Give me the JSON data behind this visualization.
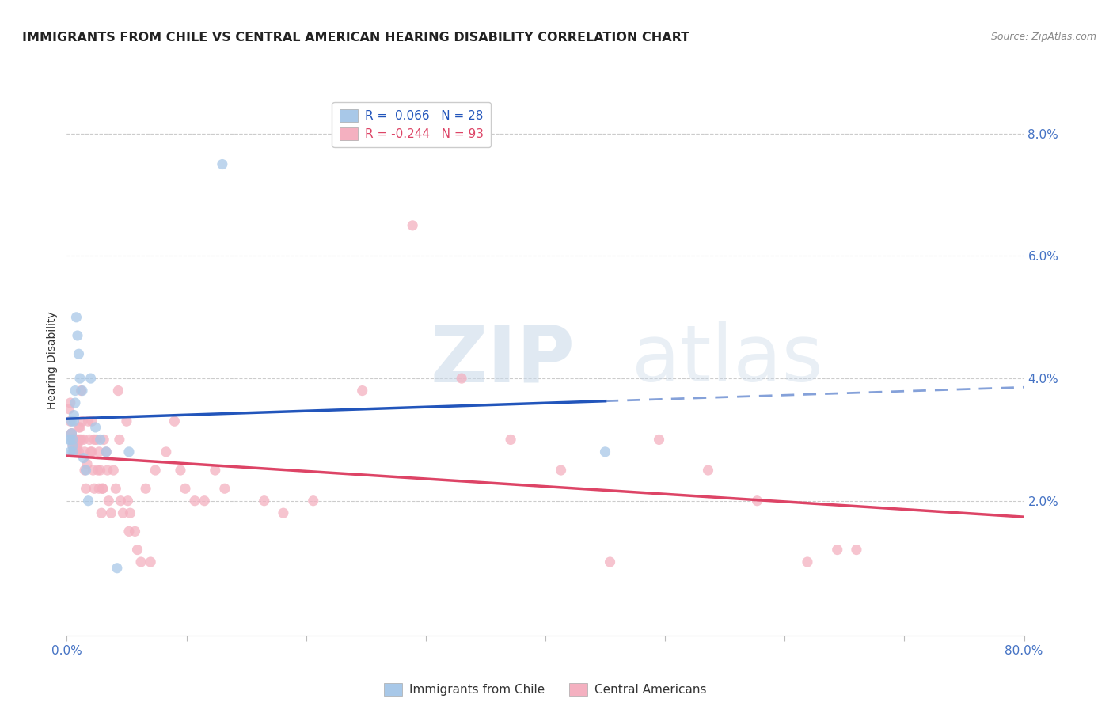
{
  "title": "IMMIGRANTS FROM CHILE VS CENTRAL AMERICAN HEARING DISABILITY CORRELATION CHART",
  "source": "Source: ZipAtlas.com",
  "ylabel": "Hearing Disability",
  "watermark_zip": "ZIP",
  "watermark_atlas": "atlas",
  "xlim": [
    0.0,
    0.8
  ],
  "ylim": [
    -0.002,
    0.088
  ],
  "xticks": [
    0.0,
    0.1,
    0.2,
    0.3,
    0.4,
    0.5,
    0.6,
    0.7,
    0.8
  ],
  "xtick_labels": [
    "0.0%",
    "",
    "",
    "",
    "",
    "",
    "",
    "",
    "80.0%"
  ],
  "ytick_pos": [
    0.0,
    0.02,
    0.04,
    0.06,
    0.08
  ],
  "ytick_labels": [
    "",
    "2.0%",
    "4.0%",
    "6.0%",
    "8.0%"
  ],
  "blue_color": "#a8c8e8",
  "pink_color": "#f4b0c0",
  "trend_blue_color": "#2255bb",
  "trend_pink_color": "#dd4466",
  "axis_color": "#4472c4",
  "grid_color": "#cccccc",
  "bg_color": "#ffffff",
  "legend_R_blue": "R =  0.066",
  "legend_N_blue": "N = 28",
  "legend_R_pink": "R = -0.244",
  "legend_N_pink": "N = 93",
  "legend_label_blue": "Immigrants from Chile",
  "legend_label_pink": "Central Americans",
  "title_fontsize": 11.5,
  "tick_fontsize": 11,
  "legend_fontsize": 11,
  "blue_x": [
    0.002,
    0.003,
    0.003,
    0.004,
    0.004,
    0.005,
    0.005,
    0.005,
    0.006,
    0.006,
    0.007,
    0.007,
    0.008,
    0.009,
    0.01,
    0.011,
    0.013,
    0.014,
    0.016,
    0.018,
    0.02,
    0.024,
    0.028,
    0.033,
    0.042,
    0.052,
    0.45,
    0.13
  ],
  "blue_y": [
    0.03,
    0.028,
    0.03,
    0.033,
    0.031,
    0.03,
    0.029,
    0.028,
    0.034,
    0.033,
    0.038,
    0.036,
    0.05,
    0.047,
    0.044,
    0.04,
    0.038,
    0.027,
    0.025,
    0.02,
    0.04,
    0.032,
    0.03,
    0.028,
    0.009,
    0.028,
    0.028,
    0.075
  ],
  "pink_x": [
    0.002,
    0.003,
    0.003,
    0.004,
    0.004,
    0.005,
    0.005,
    0.005,
    0.006,
    0.006,
    0.006,
    0.006,
    0.007,
    0.007,
    0.007,
    0.008,
    0.008,
    0.008,
    0.009,
    0.009,
    0.01,
    0.01,
    0.01,
    0.011,
    0.011,
    0.012,
    0.012,
    0.013,
    0.014,
    0.015,
    0.015,
    0.016,
    0.017,
    0.018,
    0.019,
    0.02,
    0.021,
    0.021,
    0.022,
    0.023,
    0.023,
    0.025,
    0.026,
    0.027,
    0.027,
    0.028,
    0.029,
    0.03,
    0.03,
    0.031,
    0.033,
    0.034,
    0.035,
    0.037,
    0.039,
    0.041,
    0.043,
    0.044,
    0.045,
    0.047,
    0.05,
    0.051,
    0.052,
    0.053,
    0.057,
    0.059,
    0.062,
    0.066,
    0.07,
    0.074,
    0.083,
    0.09,
    0.095,
    0.099,
    0.107,
    0.115,
    0.124,
    0.132,
    0.165,
    0.181,
    0.206,
    0.247,
    0.289,
    0.33,
    0.371,
    0.413,
    0.454,
    0.495,
    0.536,
    0.577,
    0.619,
    0.644,
    0.66
  ],
  "pink_y": [
    0.035,
    0.033,
    0.036,
    0.031,
    0.031,
    0.03,
    0.03,
    0.029,
    0.03,
    0.03,
    0.028,
    0.028,
    0.03,
    0.029,
    0.028,
    0.03,
    0.029,
    0.028,
    0.03,
    0.029,
    0.032,
    0.03,
    0.028,
    0.03,
    0.032,
    0.03,
    0.038,
    0.033,
    0.03,
    0.025,
    0.028,
    0.022,
    0.026,
    0.033,
    0.03,
    0.028,
    0.033,
    0.028,
    0.025,
    0.03,
    0.022,
    0.03,
    0.025,
    0.022,
    0.028,
    0.025,
    0.018,
    0.022,
    0.022,
    0.03,
    0.028,
    0.025,
    0.02,
    0.018,
    0.025,
    0.022,
    0.038,
    0.03,
    0.02,
    0.018,
    0.033,
    0.02,
    0.015,
    0.018,
    0.015,
    0.012,
    0.01,
    0.022,
    0.01,
    0.025,
    0.028,
    0.033,
    0.025,
    0.022,
    0.02,
    0.02,
    0.025,
    0.022,
    0.02,
    0.018,
    0.02,
    0.038,
    0.065,
    0.04,
    0.03,
    0.025,
    0.01,
    0.03,
    0.025,
    0.02,
    0.01,
    0.012,
    0.012
  ],
  "blue_trend_x_solid_end": 0.45,
  "blue_trend_x_dash_end": 0.8,
  "blue_trend_start_y": 0.03,
  "blue_trend_end_solid_y": 0.034,
  "blue_trend_end_dash_y": 0.04,
  "pink_trend_start_y": 0.032,
  "pink_trend_end_y": 0.018
}
